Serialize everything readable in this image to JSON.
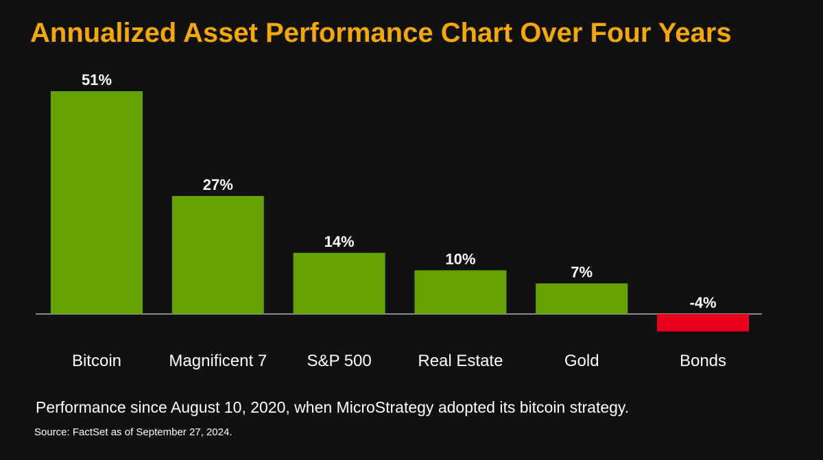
{
  "colors": {
    "background": "#111111",
    "title": "#f5a800",
    "positive": "#66a300",
    "negative": "#e8001c",
    "text": "#ffffff"
  },
  "chart_data": {
    "type": "bar",
    "title": "Annualized Asset Performance Chart Over Four Years",
    "categories": [
      "Bitcoin",
      "Magnificent 7",
      "S&P 500",
      "Real Estate",
      "Gold",
      "Bonds"
    ],
    "values": [
      51,
      27,
      14,
      10,
      7,
      -4
    ],
    "data_labels": [
      "51%",
      "27%",
      "14%",
      "10%",
      "7%",
      "-4%"
    ],
    "xlabel": "",
    "ylabel": "",
    "ylim": [
      -4,
      51
    ],
    "grid": false,
    "legend": "none"
  },
  "footnote": "Performance since August 10, 2020, when MicroStrategy adopted its bitcoin strategy.",
  "source": "Source: FactSet as of September 27, 2024."
}
